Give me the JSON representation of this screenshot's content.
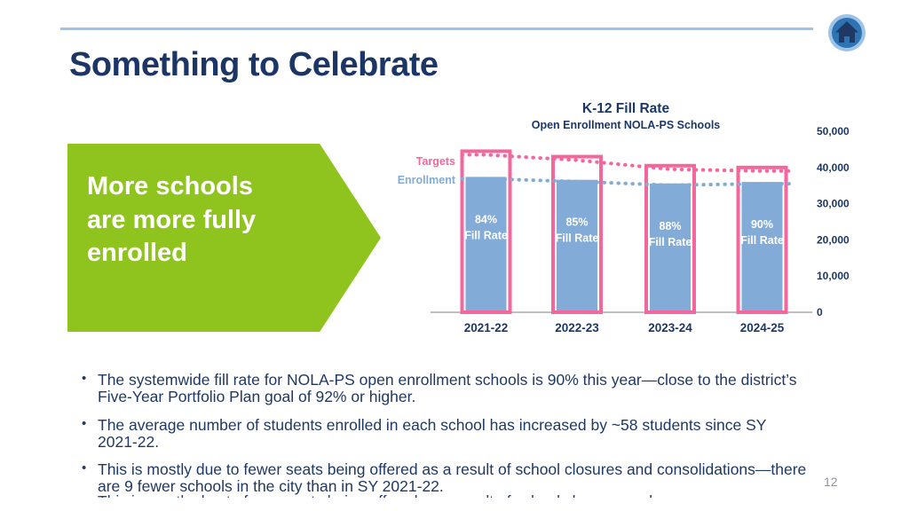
{
  "slide": {
    "title": "Something to Celebrate",
    "page_number": "12",
    "callout": {
      "text": "More schools are more fully enrolled",
      "color": "#8FC41E"
    },
    "bullets": [
      "The systemwide fill rate for NOLA-PS open enrollment schools is 90% this year—close to the district’s Five-Year Portfolio Plan goal of 92% or higher.",
      "The average number of students enrolled in each school has increased by ~58 students since SY 2021-22.",
      "This is mostly due to fewer seats being offered as a result of school closures and consolidations—there are 9 fewer schools in the city than in SY 2021-22."
    ],
    "icons": {
      "home": "home-icon"
    },
    "colors": {
      "title_navy": "#1B3666",
      "divider_blue": "#9DC3E6",
      "home_ring": "#9DC3E6",
      "home_fill": "#2E74B5",
      "home_glyph": "#1F3864"
    }
  },
  "chart_data": {
    "type": "bar",
    "title": "K-12 Fill Rate",
    "subtitle": "Open Enrollment NOLA-PS Schools",
    "categories": [
      "2021-22",
      "2022-23",
      "2023-24",
      "2024-25"
    ],
    "series": [
      {
        "name": "Targets",
        "color": "#F4679D",
        "style": "outlined-bar-with-dotted-trend",
        "values": [
          44500,
          43000,
          40500,
          40000
        ]
      },
      {
        "name": "Enrollment",
        "color": "#82ABD8",
        "style": "filled-bar-with-dotted-trend",
        "values": [
          37400,
          36600,
          35600,
          36000
        ]
      }
    ],
    "fill_rates": [
      "84%",
      "85%",
      "88%",
      "90%"
    ],
    "fill_rate_label": "Fill Rate",
    "ylim": [
      0,
      50000
    ],
    "yticks": [
      0,
      10000,
      20000,
      30000,
      40000,
      50000
    ],
    "ytick_labels": [
      "0",
      "10,000",
      "20,000",
      "30,000",
      "40,000",
      "50,000"
    ],
    "y_axis_side": "right",
    "legend_position": "left-of-first-bar",
    "grid": false
  }
}
